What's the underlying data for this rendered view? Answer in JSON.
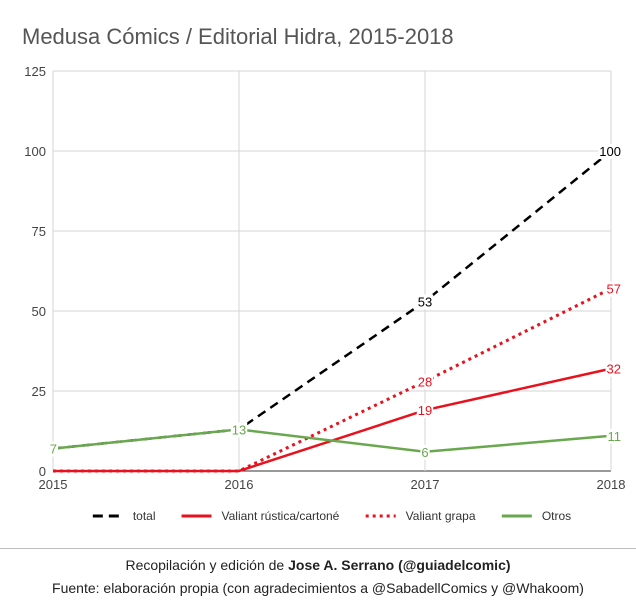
{
  "chart_data": {
    "type": "line",
    "title": "Medusa Cómics / Editorial Hidra, 2015-2018",
    "x": [
      "2015",
      "2016",
      "2017",
      "2018"
    ],
    "y_ticks": [
      "0",
      "25",
      "50",
      "75",
      "100",
      "125"
    ],
    "ylim": [
      0,
      125
    ],
    "grid": true,
    "legend_position": "bottom",
    "series": [
      {
        "name": "total",
        "values": [
          7,
          13,
          53,
          100
        ],
        "color": "#000000",
        "style": "dashed",
        "labels": [
          "",
          "",
          "53",
          "100"
        ]
      },
      {
        "name": "Valiant rústica/cartoné",
        "values": [
          0,
          0,
          19,
          32
        ],
        "color": "#e8121e",
        "style": "solid",
        "labels": [
          "",
          "",
          "19",
          "32"
        ]
      },
      {
        "name": "Valiant grapa",
        "values": [
          0,
          0,
          28,
          57
        ],
        "color": "#e8121e",
        "style": "dotted",
        "labels": [
          "",
          "",
          "28",
          "57"
        ]
      },
      {
        "name": "Otros",
        "values": [
          7,
          13,
          6,
          11
        ],
        "color": "#6aa84f",
        "style": "solid",
        "labels": [
          "7",
          "13",
          "6",
          "11"
        ]
      }
    ]
  },
  "footer": {
    "credit_prefix": "Recopilación y edición de ",
    "credit_author": "Jose A. Serrano (@guiadelcomic)",
    "source": "Fuente: elaboración propia (con agradecimientos a @SabadellComics y @Whakoom)"
  }
}
